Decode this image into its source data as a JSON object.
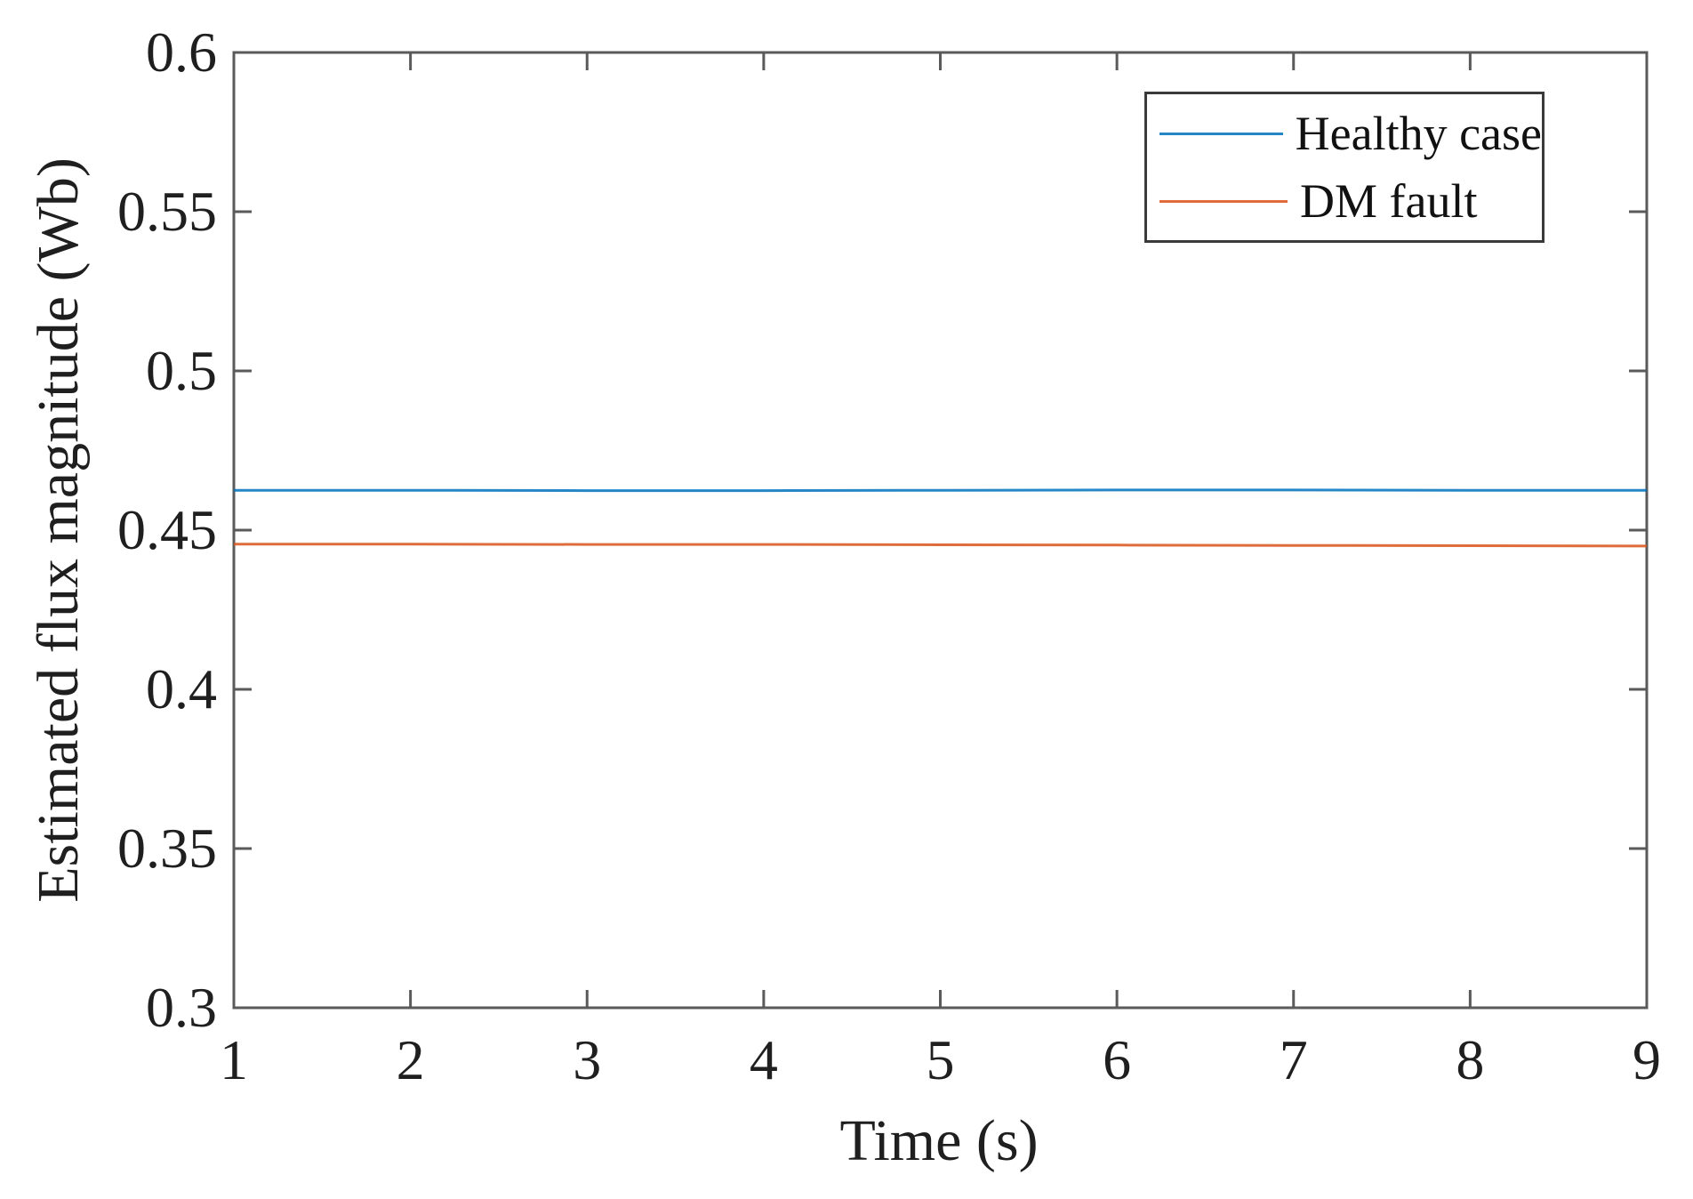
{
  "figure": {
    "background": "#ffffff"
  },
  "chart_data": {
    "type": "line",
    "title": "",
    "xlabel": "Time (s)",
    "ylabel": "Estimated flux magnitude (Wb)",
    "xlim": [
      1,
      9
    ],
    "ylim": [
      0.3,
      0.6
    ],
    "xticks": [
      1,
      2,
      3,
      4,
      5,
      6,
      7,
      8,
      9
    ],
    "xtick_labels": [
      "1",
      "2",
      "3",
      "4",
      "5",
      "6",
      "7",
      "8",
      "9"
    ],
    "yticks": [
      0.3,
      0.35,
      0.4,
      0.45,
      0.5,
      0.55,
      0.6
    ],
    "ytick_labels": [
      "0.3",
      "0.35",
      "0.4",
      "0.45",
      "0.5",
      "0.55",
      "0.6"
    ],
    "grid": false,
    "legend": {
      "position": "upper-right",
      "border": true
    },
    "x": [
      1,
      2,
      3,
      4,
      5,
      6,
      7,
      8,
      9
    ],
    "series": [
      {
        "name": "Healthy case",
        "color": "#0072BD",
        "values": [
          0.4625,
          0.4625,
          0.4624,
          0.4624,
          0.4625,
          0.4626,
          0.4626,
          0.4625,
          0.4625
        ]
      },
      {
        "name": "DM fault",
        "color": "#D95319",
        "values": [
          0.4456,
          0.4456,
          0.4455,
          0.4455,
          0.4454,
          0.4453,
          0.4452,
          0.4451,
          0.445
        ]
      }
    ],
    "axis_color": "#5a5a5a",
    "text_color": "#1f1f1f"
  }
}
